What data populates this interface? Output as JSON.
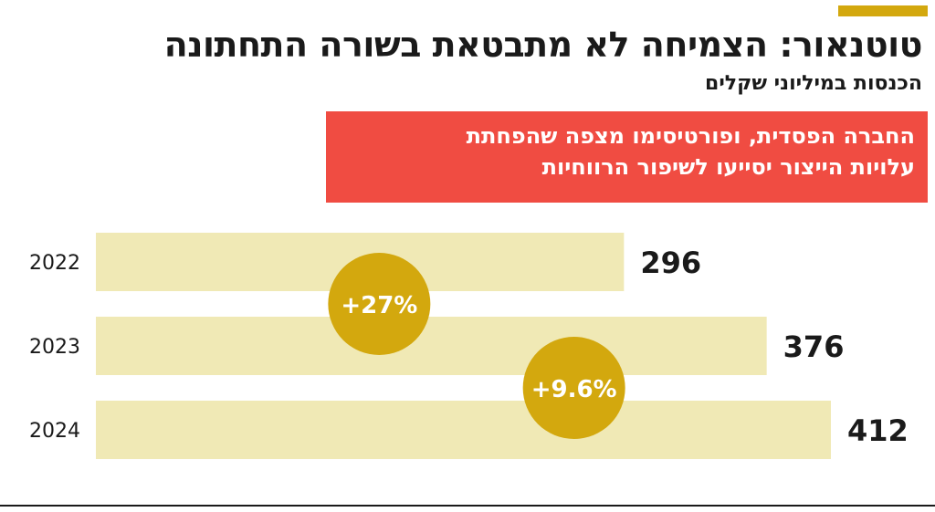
{
  "header": {
    "title": "טוטנאור: הצמיחה לא מתבטאת בשורה התחתונה",
    "subtitle": "הכנסות במיליוני שקלים",
    "accent_color": "#d3a80e"
  },
  "callout": {
    "lines": [
      "החברה הפסדית, ופורטיסימו מצפה שהפחתת",
      "עלויות הייצור יסייעו לשיפור הרווחיות"
    ],
    "color": "#f04c42"
  },
  "chart_data": {
    "type": "bar",
    "orientation": "horizontal",
    "title": "טוטנאור: הצמיחה לא מתבטאת בשורה התחתונה",
    "subtitle": "הכנסות במיליוני שקלים",
    "categories": [
      "2022",
      "2023",
      "2024"
    ],
    "values": [
      296,
      376,
      412
    ],
    "value_labels": [
      "296",
      "376",
      "412"
    ],
    "xlim": [
      0,
      412
    ],
    "grid": false,
    "legend": "none",
    "bar_color": "#f0e9b5",
    "growth_annotations": [
      {
        "label": "+27%",
        "from": "2022",
        "to": "2023"
      },
      {
        "label": "+9.6%",
        "from": "2023",
        "to": "2024"
      }
    ],
    "annotation_color": "#d3a80e"
  }
}
